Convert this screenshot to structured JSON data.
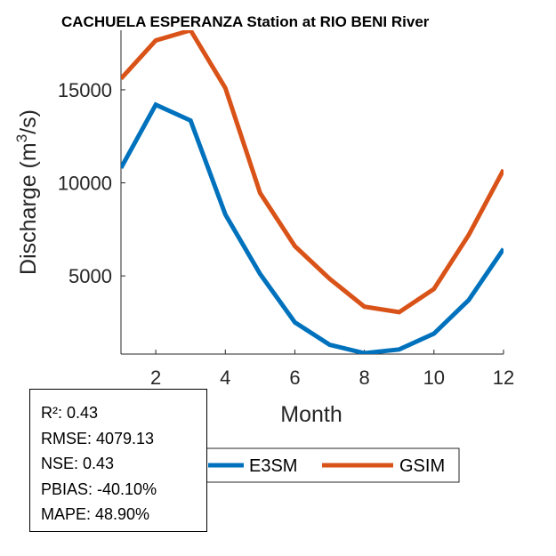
{
  "chart_data": {
    "type": "line",
    "title": "CACHUELA ESPERANZA  Station at  RIO BENI  River",
    "xlabel": "Month",
    "ylabel_main": "Discharge (m",
    "ylabel_sup": "3",
    "ylabel_end": "/s)",
    "x": [
      1,
      2,
      3,
      4,
      5,
      6,
      7,
      8,
      9,
      10,
      11,
      12
    ],
    "xlim": [
      1,
      12
    ],
    "ylim": [
      800,
      18200
    ],
    "xticks": [
      2,
      4,
      6,
      8,
      10,
      12
    ],
    "yticks": [
      5000,
      10000,
      15000
    ],
    "series": [
      {
        "name": "E3SM",
        "color": "#0072BD",
        "values": [
          10800,
          14200,
          13350,
          8300,
          5100,
          2500,
          1300,
          850,
          1050,
          1900,
          3700,
          6450
        ]
      },
      {
        "name": "GSIM",
        "color": "#D95319",
        "values": [
          15600,
          17650,
          18200,
          15100,
          9450,
          6600,
          4850,
          3350,
          3050,
          4300,
          7200,
          10700
        ]
      }
    ],
    "legend": {
      "position": "bottom"
    }
  },
  "stats": [
    "R²: 0.43",
    "RMSE: 4079.13",
    "NSE: 0.43",
    "PBIAS: -40.10%",
    "MAPE: 48.90%"
  ]
}
